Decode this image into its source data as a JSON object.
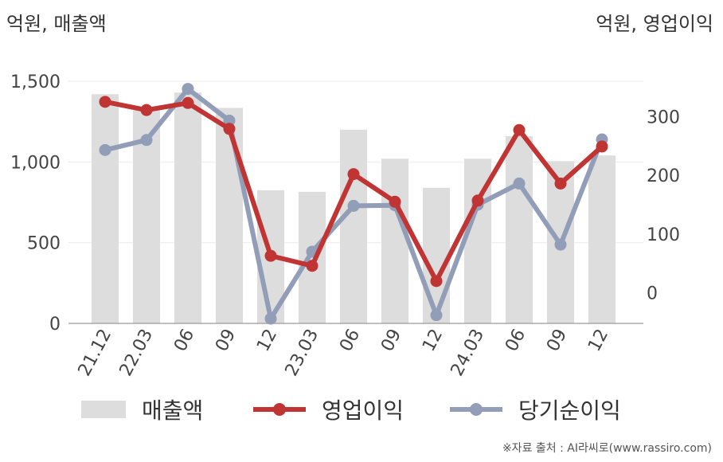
{
  "chart_data": {
    "type": "bar+line",
    "categories": [
      "21.12",
      "22.03",
      "06",
      "09",
      "12",
      "23.03",
      "06",
      "09",
      "12",
      "24.03",
      "06",
      "09",
      "12"
    ],
    "left_axis": {
      "unit_label": "억원, 매출액",
      "ylim": [
        0,
        1500
      ],
      "ticks": [
        0,
        500,
        1000,
        1500
      ],
      "tick_labels": [
        "0",
        "500",
        "1,000",
        "1,500"
      ]
    },
    "right_axis": {
      "unit_label": "억원, 영업이익",
      "ylim": [
        -52,
        360
      ],
      "ticks": [
        0,
        100,
        200,
        300
      ],
      "tick_labels": [
        "0",
        "100",
        "200",
        "300"
      ]
    },
    "series": [
      {
        "name": "매출액",
        "type": "bar",
        "axis": "left",
        "color": "#dddddd",
        "values": [
          1420,
          1320,
          1430,
          1335,
          825,
          815,
          1200,
          1020,
          840,
          1020,
          1160,
          1005,
          1040
        ]
      },
      {
        "name": "영업이익",
        "type": "line",
        "axis": "right",
        "color": "#c03434",
        "values": [
          325,
          311,
          323,
          279,
          63,
          46,
          202,
          155,
          20,
          157,
          277,
          186,
          249
        ]
      },
      {
        "name": "당기순이익",
        "type": "line",
        "axis": "right",
        "color": "#929db8",
        "values": [
          243,
          260,
          347,
          293,
          -44,
          70,
          148,
          149,
          -38,
          150,
          186,
          82,
          261
        ]
      }
    ],
    "grid": true,
    "legend_position": "bottom"
  },
  "source": "※자료 출처 : AI라씨로(www.rassiro.com)"
}
